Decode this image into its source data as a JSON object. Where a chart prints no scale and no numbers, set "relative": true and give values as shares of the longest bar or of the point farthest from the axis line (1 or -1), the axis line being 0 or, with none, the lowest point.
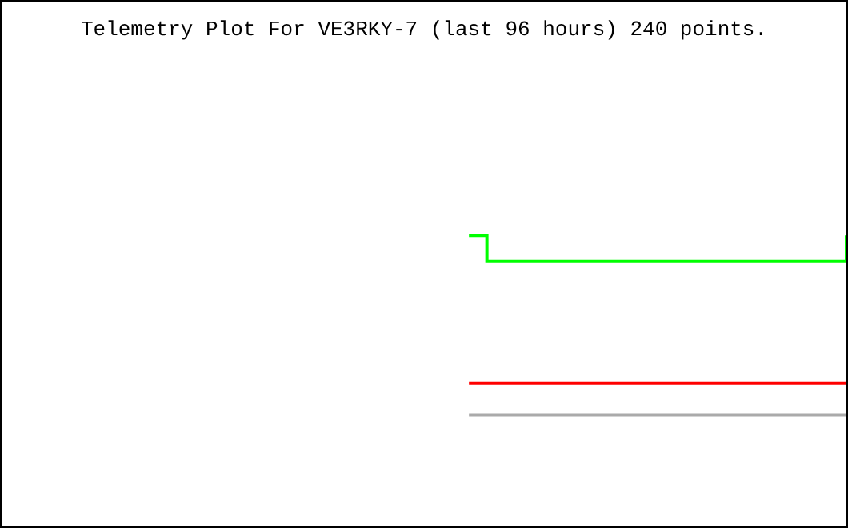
{
  "chart_data": {
    "type": "line",
    "title": "Telemetry Plot For VE3RKY-7 (last 96 hours) 240 points.",
    "relative": true,
    "categories": [
      null,
      null,
      null,
      null,
      null,
      null,
      null,
      null,
      null,
      null,
      null,
      null,
      null,
      null,
      null,
      null,
      null,
      null,
      null,
      null,
      null,
      null,
      null,
      null,
      null,
      null,
      null,
      null,
      null,
      null,
      null,
      null,
      null,
      null,
      null,
      null,
      null,
      null,
      null,
      null,
      null,
      null,
      null,
      null,
      null,
      null,
      null,
      null
    ],
    "series": [
      {
        "type": "step",
        "color": "#00ff00",
        "values": [
          null,
          null,
          null,
          null,
          null,
          null,
          null,
          null,
          null,
          null,
          null,
          null,
          null,
          null,
          null,
          null,
          null,
          null,
          null,
          null,
          null,
          null,
          null,
          null,
          null,
          null,
          1,
          0.91,
          0.91,
          0.91,
          0.91,
          0.91,
          0.91,
          0.91,
          0.91,
          0.91,
          0.91,
          0.91,
          0.91,
          0.91,
          0.91,
          0.91,
          0.91,
          0.91,
          0.91,
          0.91,
          0.91,
          1
        ]
      },
      {
        "color": "#ff0000",
        "values": [
          null,
          null,
          null,
          null,
          null,
          null,
          null,
          null,
          null,
          null,
          null,
          null,
          null,
          null,
          null,
          null,
          null,
          null,
          null,
          null,
          null,
          null,
          null,
          null,
          null,
          null,
          0.49,
          0.49,
          0.49,
          0.49,
          0.49,
          0.49,
          0.49,
          0.49,
          0.49,
          0.49,
          0.49,
          0.49,
          0.49,
          0.49,
          0.49,
          0.49,
          0.49,
          0.49,
          0.49,
          0.49,
          0.49,
          0.49
        ]
      },
      {
        "color": "#aaaaaa",
        "values": [
          null,
          null,
          null,
          null,
          null,
          null,
          null,
          null,
          null,
          null,
          null,
          null,
          null,
          null,
          null,
          null,
          null,
          null,
          null,
          null,
          null,
          null,
          null,
          null,
          null,
          null,
          0.38,
          0.38,
          0.38,
          0.38,
          0.38,
          0.38,
          0.38,
          0.38,
          0.38,
          0.38,
          0.38,
          0.38,
          0.38,
          0.38,
          0.38,
          0.38,
          0.38,
          0.38,
          0.38,
          0.38,
          0.38,
          0.38
        ]
      }
    ]
  }
}
